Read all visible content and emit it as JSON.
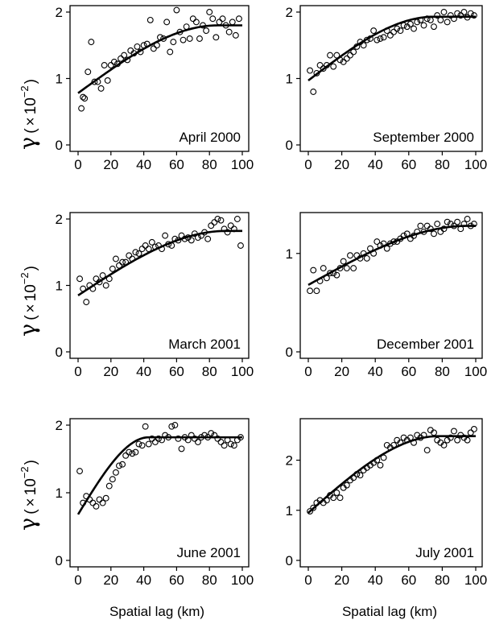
{
  "figure": {
    "xlabel": "Spatial lag (km)",
    "ylabel": {
      "symbol": "γ",
      "open": "(",
      "times": "×",
      "base": "10",
      "exp": "−2",
      "close": ")"
    }
  },
  "chart_data": [
    {
      "type": "scatter",
      "title": "April 2000",
      "xlabel": "",
      "ylabel": "",
      "xlim": [
        0,
        100
      ],
      "ylim": [
        0,
        2
      ],
      "xticks": [
        "0",
        "20",
        "40",
        "60",
        "80",
        "100"
      ],
      "yticks": [
        "0",
        "1",
        "2"
      ],
      "points_x": [
        2,
        3,
        4,
        6,
        8,
        10,
        12,
        14,
        16,
        18,
        20,
        22,
        24,
        26,
        28,
        30,
        32,
        34,
        36,
        38,
        40,
        42,
        44,
        46,
        48,
        50,
        52,
        54,
        56,
        58,
        60,
        62,
        64,
        66,
        68,
        70,
        72,
        74,
        76,
        78,
        80,
        82,
        84,
        86,
        88,
        90,
        92,
        94,
        96,
        98
      ],
      "points_y": [
        0.55,
        0.72,
        0.7,
        1.1,
        1.55,
        0.95,
        0.95,
        0.85,
        1.2,
        0.97,
        1.2,
        1.25,
        1.22,
        1.3,
        1.35,
        1.28,
        1.42,
        1.38,
        1.48,
        1.4,
        1.5,
        1.52,
        1.88,
        1.45,
        1.5,
        1.62,
        1.6,
        1.85,
        1.4,
        1.55,
        2.03,
        1.7,
        1.58,
        1.78,
        1.6,
        1.9,
        1.85,
        1.6,
        1.8,
        1.72,
        2.0,
        1.9,
        1.62,
        1.85,
        1.9,
        1.8,
        1.7,
        1.85,
        1.65,
        1.9
      ],
      "fit": {
        "model": "spherical",
        "nugget": 0.78,
        "sill": 1.8,
        "range": 85
      }
    },
    {
      "type": "scatter",
      "title": "September 2000",
      "xlabel": "",
      "ylabel": "",
      "xlim": [
        0,
        100
      ],
      "ylim": [
        0,
        2
      ],
      "xticks": [
        "0",
        "20",
        "40",
        "60",
        "80",
        "100"
      ],
      "yticks": [
        "0",
        "1",
        "2"
      ],
      "points_x": [
        1,
        3,
        5,
        7,
        9,
        11,
        13,
        15,
        17,
        19,
        21,
        23,
        25,
        27,
        29,
        31,
        33,
        35,
        37,
        39,
        41,
        43,
        45,
        47,
        49,
        51,
        53,
        55,
        57,
        59,
        61,
        63,
        65,
        67,
        69,
        71,
        73,
        75,
        77,
        79,
        81,
        83,
        85,
        87,
        89,
        91,
        93,
        95,
        97,
        99
      ],
      "points_y": [
        1.12,
        0.8,
        1.08,
        1.2,
        1.15,
        1.2,
        1.35,
        1.18,
        1.35,
        1.28,
        1.25,
        1.3,
        1.35,
        1.4,
        1.48,
        1.55,
        1.5,
        1.58,
        1.6,
        1.72,
        1.58,
        1.6,
        1.62,
        1.72,
        1.65,
        1.7,
        1.75,
        1.72,
        1.8,
        1.78,
        1.82,
        1.75,
        1.85,
        1.88,
        1.8,
        1.9,
        1.88,
        1.78,
        1.95,
        1.88,
        2.0,
        1.85,
        1.95,
        1.9,
        1.98,
        1.95,
        2.0,
        1.92,
        1.98,
        1.95
      ],
      "fit": {
        "model": "spherical",
        "nugget": 0.97,
        "sill": 1.93,
        "range": 75
      }
    },
    {
      "type": "scatter",
      "title": "March 2001",
      "xlabel": "",
      "ylabel": "",
      "xlim": [
        0,
        100
      ],
      "ylim": [
        0,
        2
      ],
      "xticks": [
        "0",
        "20",
        "40",
        "60",
        "80",
        "100"
      ],
      "yticks": [
        "0",
        "1",
        "2"
      ],
      "points_x": [
        1,
        3,
        5,
        7,
        9,
        11,
        13,
        15,
        17,
        19,
        21,
        23,
        25,
        27,
        29,
        31,
        33,
        35,
        37,
        39,
        41,
        43,
        45,
        47,
        49,
        51,
        53,
        55,
        57,
        59,
        61,
        63,
        65,
        67,
        69,
        71,
        73,
        75,
        77,
        79,
        81,
        83,
        85,
        87,
        89,
        91,
        93,
        95,
        97,
        99
      ],
      "points_y": [
        1.1,
        0.95,
        0.75,
        1.0,
        0.95,
        1.1,
        1.05,
        1.15,
        1.0,
        1.1,
        1.25,
        1.4,
        1.3,
        1.35,
        1.35,
        1.45,
        1.4,
        1.5,
        1.48,
        1.55,
        1.6,
        1.55,
        1.65,
        1.58,
        1.6,
        1.55,
        1.75,
        1.62,
        1.6,
        1.7,
        1.68,
        1.75,
        1.7,
        1.72,
        1.68,
        1.78,
        1.72,
        1.75,
        1.8,
        1.7,
        1.9,
        1.95,
        2.0,
        1.98,
        1.85,
        1.8,
        1.9,
        1.85,
        2.0,
        1.6
      ],
      "fit": {
        "model": "spherical",
        "nugget": 0.85,
        "sill": 1.82,
        "range": 90
      }
    },
    {
      "type": "scatter",
      "title": "December 2001",
      "xlabel": "",
      "ylabel": "",
      "xlim": [
        0,
        100
      ],
      "ylim": [
        0,
        1.35
      ],
      "xticks": [
        "0",
        "20",
        "40",
        "60",
        "80",
        "100"
      ],
      "yticks": [
        "0",
        "1"
      ],
      "points_x": [
        1,
        3,
        5,
        7,
        9,
        11,
        13,
        15,
        17,
        19,
        21,
        23,
        25,
        27,
        29,
        31,
        33,
        35,
        37,
        39,
        41,
        43,
        45,
        47,
        49,
        51,
        53,
        55,
        57,
        59,
        61,
        63,
        65,
        67,
        69,
        71,
        73,
        75,
        77,
        79,
        81,
        83,
        85,
        87,
        89,
        91,
        93,
        95,
        97,
        99
      ],
      "points_y": [
        0.62,
        0.83,
        0.62,
        0.72,
        0.85,
        0.75,
        0.8,
        0.8,
        0.78,
        0.85,
        0.92,
        0.85,
        0.98,
        0.85,
        0.98,
        0.95,
        1.0,
        0.95,
        1.05,
        1.0,
        1.12,
        1.08,
        1.1,
        1.05,
        1.1,
        1.12,
        1.12,
        1.15,
        1.18,
        1.2,
        1.15,
        1.18,
        1.22,
        1.28,
        1.22,
        1.28,
        1.25,
        1.2,
        1.3,
        1.22,
        1.25,
        1.32,
        1.3,
        1.28,
        1.32,
        1.25,
        1.3,
        1.35,
        1.28,
        1.3
      ],
      "fit": {
        "model": "spherical",
        "nugget": 0.68,
        "sill": 1.28,
        "range": 95
      }
    },
    {
      "type": "scatter",
      "title": "June 2001",
      "xlabel": "",
      "ylabel": "",
      "xlim": [
        0,
        100
      ],
      "ylim": [
        0,
        2
      ],
      "xticks": [
        "0",
        "20",
        "40",
        "60",
        "80",
        "100"
      ],
      "yticks": [
        "0",
        "1",
        "2"
      ],
      "points_x": [
        1,
        3,
        5,
        7,
        9,
        11,
        13,
        15,
        17,
        19,
        21,
        23,
        25,
        27,
        29,
        31,
        33,
        35,
        37,
        39,
        41,
        43,
        45,
        47,
        49,
        51,
        53,
        55,
        57,
        59,
        61,
        63,
        65,
        67,
        69,
        71,
        73,
        75,
        77,
        79,
        81,
        83,
        85,
        87,
        89,
        91,
        93,
        95,
        97,
        99
      ],
      "points_y": [
        1.32,
        0.85,
        0.95,
        0.9,
        0.85,
        0.8,
        0.9,
        0.85,
        0.92,
        1.1,
        1.2,
        1.3,
        1.4,
        1.42,
        1.55,
        1.6,
        1.58,
        1.6,
        1.72,
        1.7,
        1.98,
        1.72,
        1.8,
        1.75,
        1.8,
        1.78,
        1.85,
        1.82,
        1.98,
        2.0,
        1.8,
        1.65,
        1.82,
        1.78,
        1.85,
        1.8,
        1.75,
        1.82,
        1.85,
        1.82,
        1.88,
        1.85,
        1.8,
        1.75,
        1.7,
        1.78,
        1.72,
        1.7,
        1.78,
        1.82
      ],
      "fit": {
        "model": "spherical",
        "nugget": 0.68,
        "sill": 1.82,
        "range": 43
      }
    },
    {
      "type": "scatter",
      "title": "July 2001",
      "xlabel": "",
      "ylabel": "",
      "xlim": [
        0,
        100
      ],
      "ylim": [
        0,
        2.7
      ],
      "xticks": [
        "0",
        "20",
        "40",
        "60",
        "80",
        "100"
      ],
      "yticks": [
        "0",
        "1",
        "2"
      ],
      "points_x": [
        1,
        3,
        5,
        7,
        9,
        11,
        13,
        15,
        17,
        19,
        21,
        23,
        25,
        27,
        29,
        31,
        33,
        35,
        37,
        39,
        41,
        43,
        45,
        47,
        49,
        51,
        53,
        55,
        57,
        59,
        61,
        63,
        65,
        67,
        69,
        71,
        73,
        75,
        77,
        79,
        81,
        83,
        85,
        87,
        89,
        91,
        93,
        95,
        97,
        99
      ],
      "points_y": [
        0.98,
        1.05,
        1.15,
        1.2,
        1.15,
        1.2,
        1.3,
        1.25,
        1.35,
        1.25,
        1.45,
        1.5,
        1.6,
        1.65,
        1.72,
        1.7,
        1.8,
        1.85,
        1.9,
        1.95,
        2.0,
        1.9,
        2.05,
        2.3,
        2.25,
        2.3,
        2.4,
        2.35,
        2.45,
        2.4,
        2.45,
        2.35,
        2.5,
        2.45,
        2.5,
        2.2,
        2.6,
        2.55,
        2.4,
        2.35,
        2.3,
        2.4,
        2.45,
        2.58,
        2.4,
        2.5,
        2.45,
        2.4,
        2.55,
        2.62
      ],
      "fit": {
        "model": "spherical",
        "nugget": 0.95,
        "sill": 2.48,
        "range": 78
      }
    }
  ]
}
